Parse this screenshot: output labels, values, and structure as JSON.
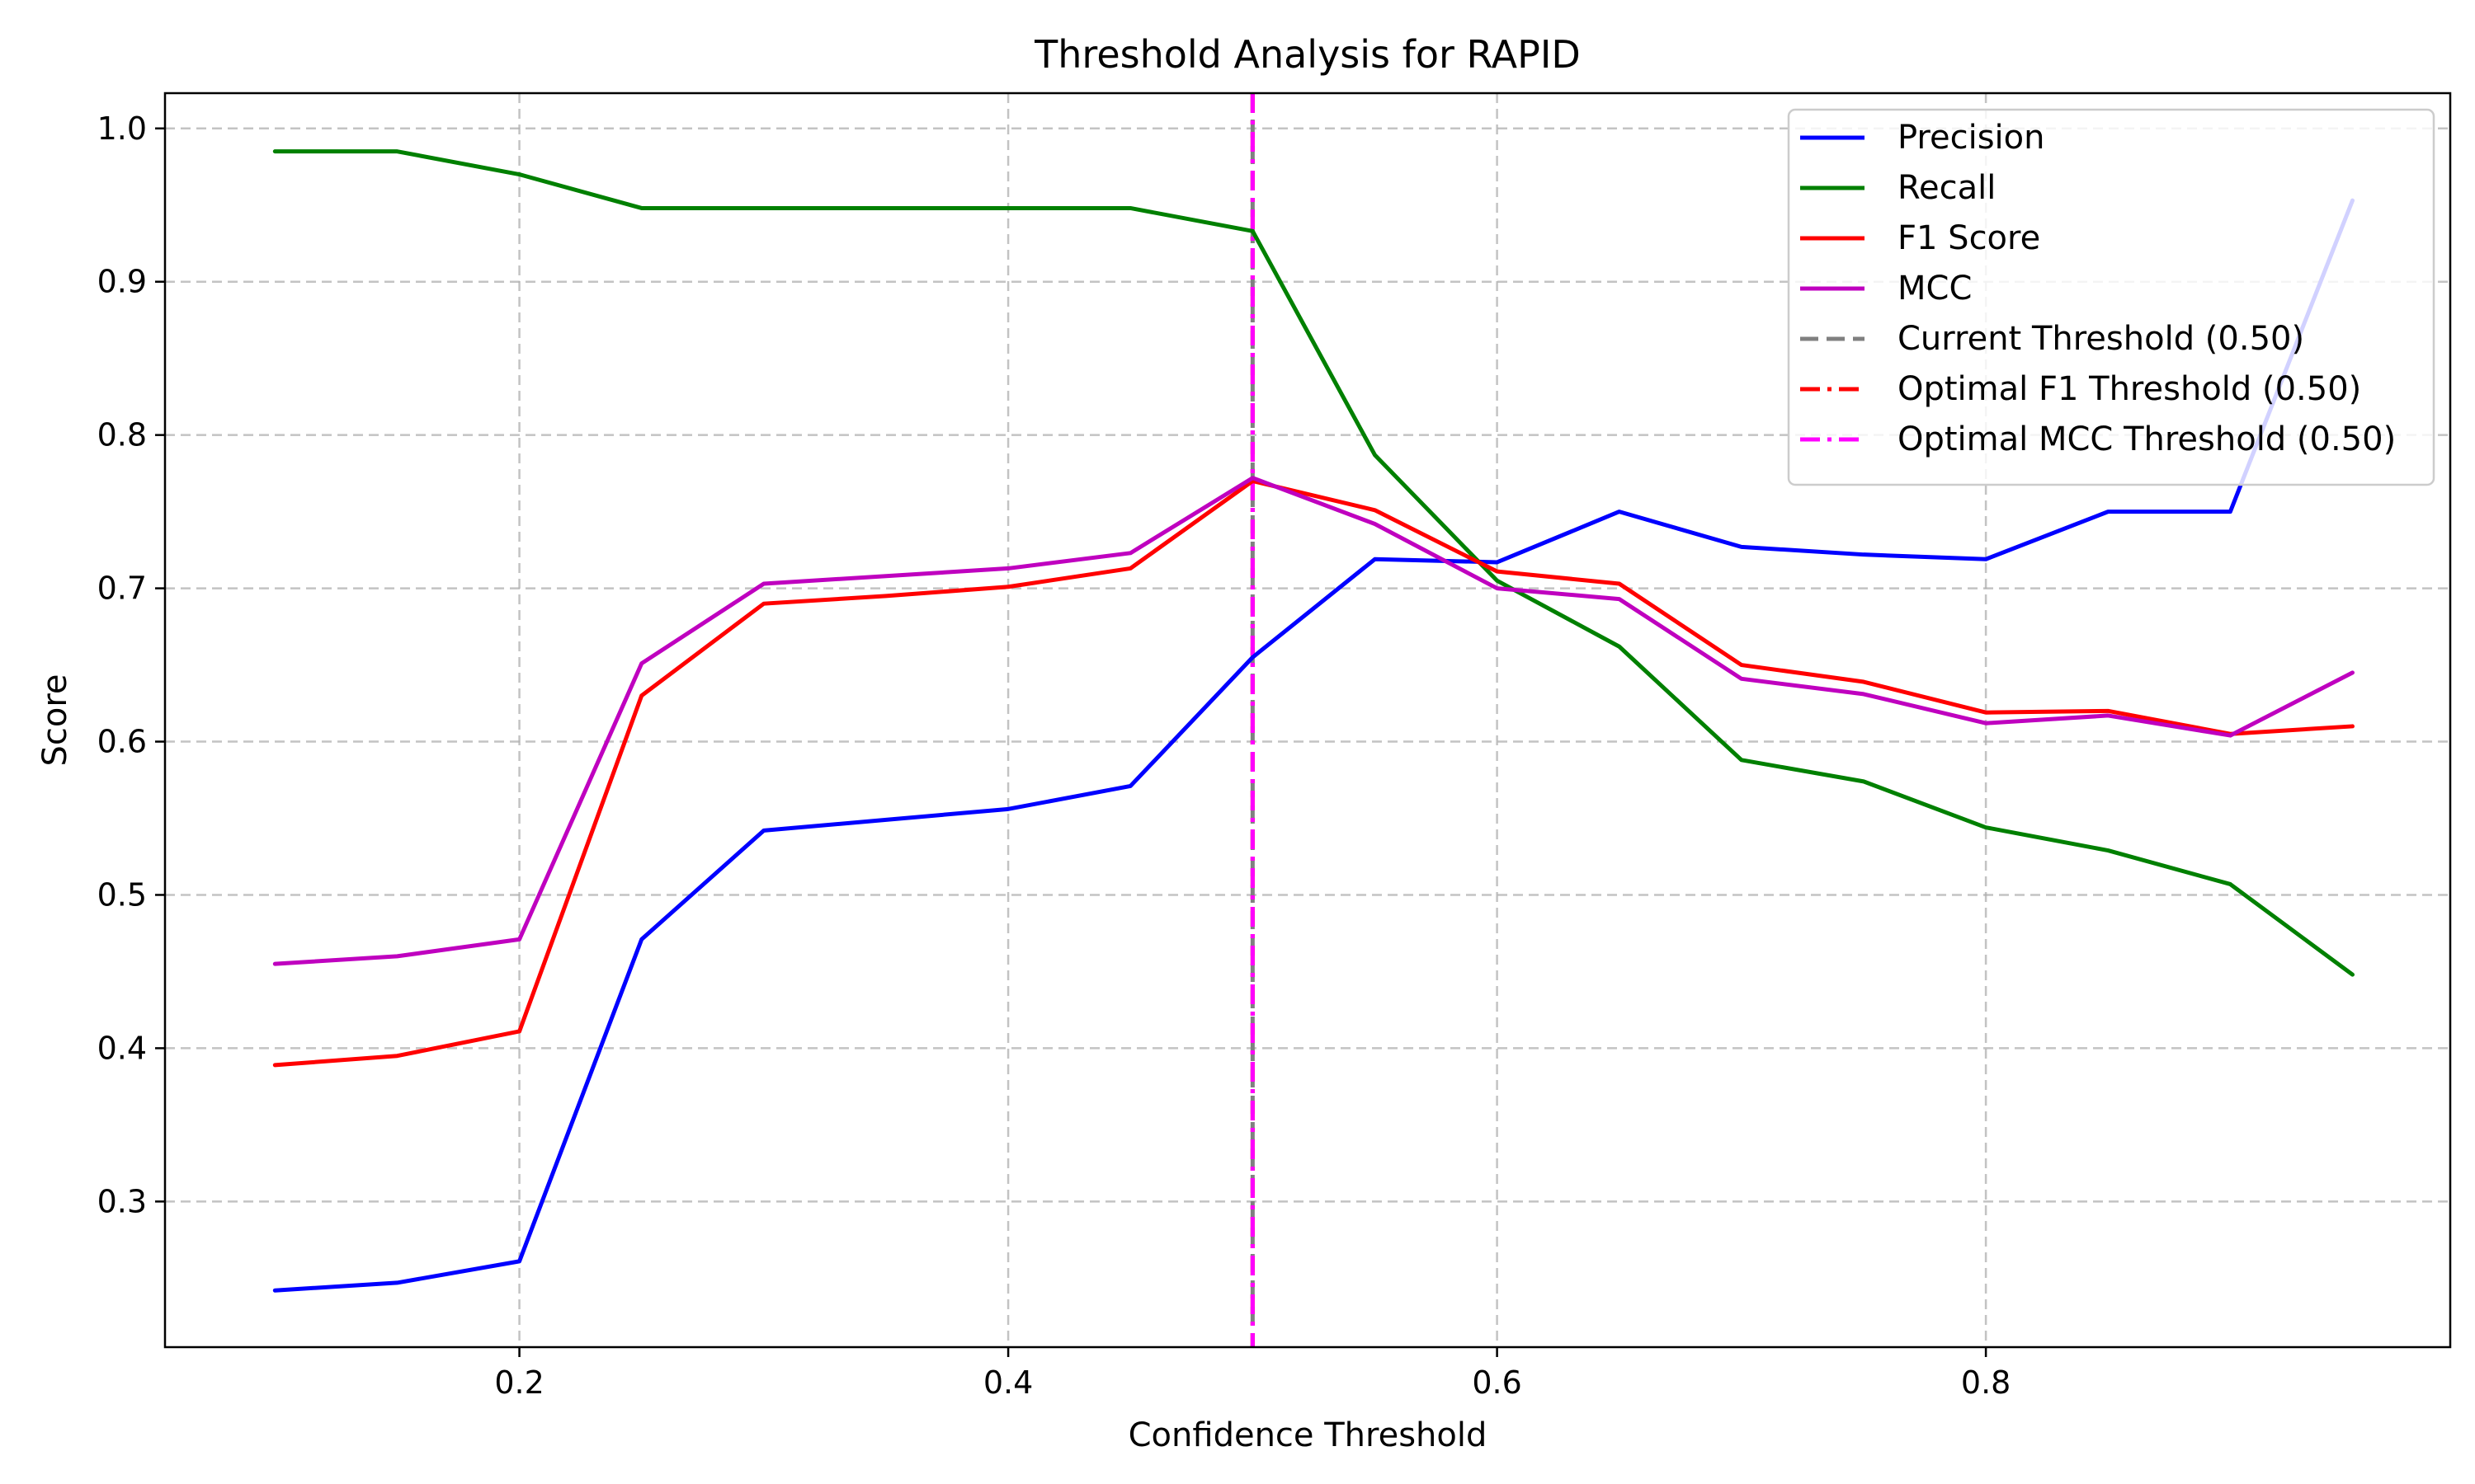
{
  "chart_data": {
    "type": "line",
    "title": "Threshold Analysis for RAPID",
    "xlabel": "Confidence Threshold",
    "ylabel": "Score",
    "xlim": [
      0.055,
      0.99
    ],
    "ylim": [
      0.205,
      1.023
    ],
    "xticks": [
      0.2,
      0.4,
      0.6,
      0.8
    ],
    "xtick_labels": [
      "0.2",
      "0.4",
      "0.6",
      "0.8"
    ],
    "yticks": [
      0.3,
      0.4,
      0.5,
      0.6,
      0.7,
      0.8,
      0.9,
      1.0
    ],
    "ytick_labels": [
      "0.3",
      "0.4",
      "0.5",
      "0.6",
      "0.7",
      "0.8",
      "0.9",
      "1.0"
    ],
    "grid": true,
    "legend_position": "top-right",
    "x": [
      0.1,
      0.15,
      0.2,
      0.25,
      0.3,
      0.35,
      0.4,
      0.45,
      0.5,
      0.55,
      0.6,
      0.65,
      0.7,
      0.75,
      0.8,
      0.85,
      0.9,
      0.95
    ],
    "series": [
      {
        "name": "Precision",
        "color": "#0000ff",
        "values": [
          0.242,
          0.247,
          0.261,
          0.471,
          0.542,
          0.549,
          0.556,
          0.571,
          0.655,
          0.719,
          0.717,
          0.75,
          0.727,
          0.722,
          0.719,
          0.75,
          0.75,
          0.953
        ]
      },
      {
        "name": "Recall",
        "color": "#008000",
        "values": [
          0.985,
          0.985,
          0.97,
          0.948,
          0.948,
          0.948,
          0.948,
          0.948,
          0.933,
          0.787,
          0.705,
          0.662,
          0.588,
          0.574,
          0.544,
          0.529,
          0.507,
          0.448
        ]
      },
      {
        "name": "F1 Score",
        "color": "#ff0000",
        "values": [
          0.389,
          0.395,
          0.411,
          0.63,
          0.69,
          0.695,
          0.701,
          0.713,
          0.77,
          0.751,
          0.711,
          0.703,
          0.65,
          0.639,
          0.619,
          0.62,
          0.605,
          0.61
        ]
      },
      {
        "name": "MCC",
        "color": "#bf00bf",
        "values": [
          0.455,
          0.46,
          0.471,
          0.651,
          0.703,
          0.708,
          0.713,
          0.723,
          0.772,
          0.742,
          0.7,
          0.693,
          0.641,
          0.631,
          0.612,
          0.617,
          0.604,
          0.645
        ]
      }
    ],
    "thresholds": [
      {
        "name": "Current Threshold (0.50)",
        "x": 0.5,
        "color": "#808080",
        "style": "dashed"
      },
      {
        "name": "Optimal F1 Threshold (0.50)",
        "x": 0.5,
        "color": "#ff0000",
        "style": "dashdot"
      },
      {
        "name": "Optimal MCC Threshold (0.50)",
        "x": 0.5,
        "color": "#ff00ff",
        "style": "dashdot"
      }
    ]
  }
}
